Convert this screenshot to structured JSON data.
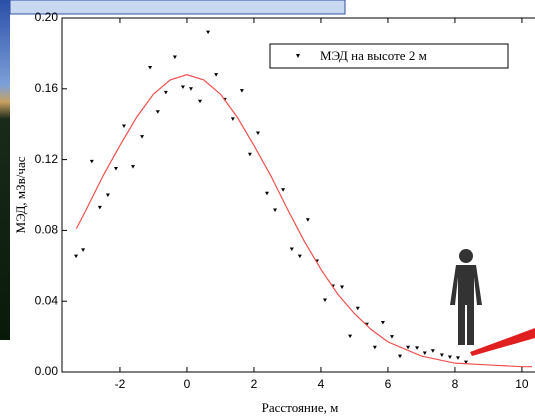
{
  "chart_data": {
    "type": "scatter",
    "x_label": "Расстояние, м",
    "y_label": "МЭД, мЗв/час",
    "xlim": [
      -3.73,
      10.39
    ],
    "ylim": [
      0,
      0.2
    ],
    "xticks": [
      -2,
      0,
      2,
      4,
      6,
      8,
      10
    ],
    "yticks": [
      {
        "value": 0,
        "label": "0.00"
      },
      0.04,
      0.08,
      0.12,
      0.16,
      {
        "value": 0.2,
        "label": "0.20"
      }
    ],
    "legend": "top-right",
    "series": [
      {
        "name": "МЭД на высоте 2 м",
        "type": "scatter",
        "color": "#000000",
        "x": [
          -3.31,
          -3.1,
          -2.84,
          -2.6,
          -2.36,
          -2.12,
          -1.88,
          -1.61,
          -1.34,
          -1.1,
          -0.87,
          -0.63,
          -0.36,
          -0.12,
          0.12,
          0.39,
          0.63,
          0.87,
          1.13,
          1.37,
          1.64,
          1.88,
          2.12,
          2.39,
          2.63,
          2.87,
          3.13,
          3.37,
          3.61,
          3.88,
          4.12,
          4.36,
          4.63,
          4.87,
          5.1,
          5.37,
          5.61,
          5.85,
          6.12,
          6.36,
          6.6,
          6.87,
          7.1,
          7.34,
          7.61,
          7.85,
          8.09,
          8.33
        ],
        "values": [
          0.0655,
          0.069,
          0.119,
          0.093,
          0.1,
          0.115,
          0.139,
          0.116,
          0.133,
          0.172,
          0.147,
          0.158,
          0.178,
          0.161,
          0.16,
          0.153,
          0.192,
          0.168,
          0.154,
          0.143,
          0.159,
          0.123,
          0.135,
          0.101,
          0.0915,
          0.103,
          0.0695,
          0.0655,
          0.086,
          0.0627,
          0.0407,
          0.0486,
          0.048,
          0.0203,
          0.036,
          0.027,
          0.014,
          0.028,
          0.02,
          0.009,
          0.014,
          0.0136,
          0.0107,
          0.012,
          0.0096,
          0.0085,
          0.008,
          0.0056
        ]
      },
      {
        "type": "line",
        "color": "#f05050",
        "x": [
          -3.3,
          -3,
          -2.5,
          -2,
          -1.5,
          -1,
          -0.5,
          0,
          0.5,
          1,
          1.5,
          2,
          2.5,
          3,
          3.5,
          4,
          4.5,
          5,
          5.5,
          6,
          7,
          8,
          9,
          10,
          10.3
        ],
        "values": [
          0.081,
          0.092,
          0.111,
          0.128,
          0.144,
          0.157,
          0.165,
          0.168,
          0.165,
          0.157,
          0.144,
          0.128,
          0.111,
          0.092,
          0.074,
          0.058,
          0.044,
          0.033,
          0.024,
          0.017,
          0.009,
          0.005,
          0.004,
          0.003,
          0.003
        ]
      }
    ]
  }
}
